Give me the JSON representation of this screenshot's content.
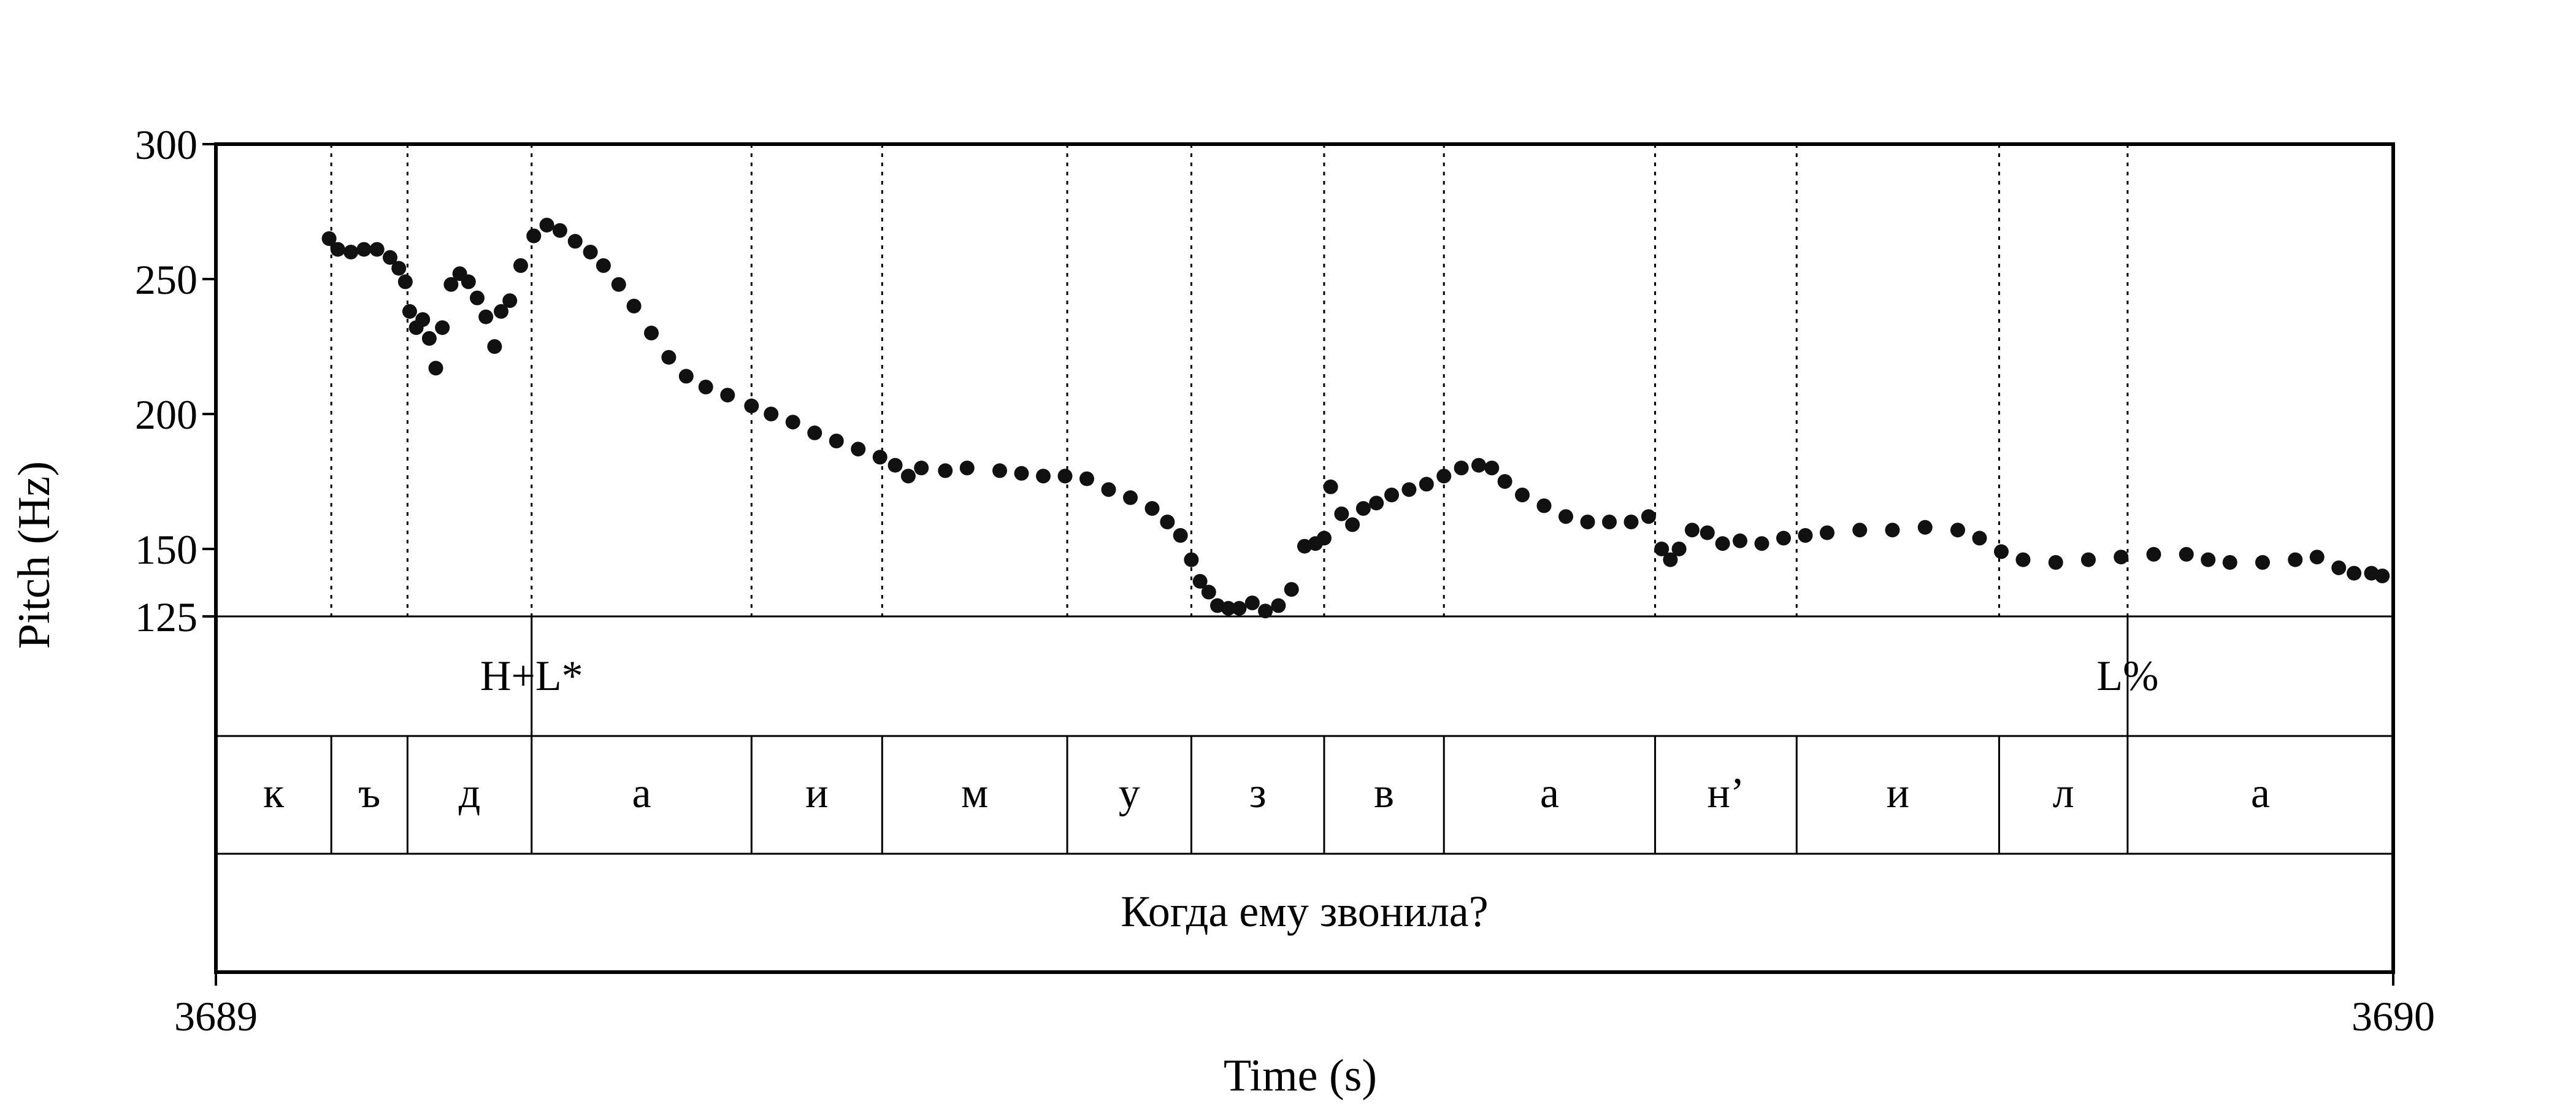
{
  "chart_data": {
    "type": "scatter",
    "xlabel": "Time (s)",
    "ylabel": "Pitch (Hz)",
    "xlim": [
      3689,
      3690
    ],
    "ylim": [
      125,
      300
    ],
    "x_ticks": [
      "3689",
      "3690"
    ],
    "y_ticks": [
      {
        "value": 300,
        "label": "300"
      },
      {
        "value": 250,
        "label": "250"
      },
      {
        "value": 200,
        "label": "200"
      },
      {
        "value": 150,
        "label": "150"
      },
      {
        "value": 125,
        "label": "125"
      }
    ],
    "grid": false,
    "tiers": {
      "tones": [
        {
          "label": "H+L*",
          "t": 0.145
        },
        {
          "label": "L%",
          "t": 0.878
        }
      ],
      "segments": {
        "labels": [
          "к",
          "ъ",
          "д",
          "а",
          "и",
          "м",
          "у",
          "з",
          "в",
          "а",
          "н’",
          "и",
          "л",
          "а"
        ],
        "boundaries": [
          0,
          0.053,
          0.088,
          0.145,
          0.246,
          0.306,
          0.391,
          0.448,
          0.509,
          0.564,
          0.661,
          0.726,
          0.819,
          0.878,
          1.0
        ]
      },
      "sentence": "Когда ему звонила?"
    },
    "series": [
      {
        "points": [
          [
            0.052,
            265
          ],
          [
            0.056,
            261
          ],
          [
            0.062,
            260
          ],
          [
            0.068,
            261
          ],
          [
            0.074,
            261
          ],
          [
            0.08,
            258
          ],
          [
            0.084,
            254
          ],
          [
            0.087,
            249
          ],
          [
            0.089,
            238
          ],
          [
            0.092,
            232
          ],
          [
            0.095,
            235
          ],
          [
            0.098,
            228
          ],
          [
            0.101,
            217
          ],
          [
            0.104,
            232
          ],
          [
            0.108,
            248
          ],
          [
            0.112,
            252
          ],
          [
            0.116,
            249
          ],
          [
            0.12,
            243
          ],
          [
            0.124,
            236
          ],
          [
            0.128,
            225
          ],
          [
            0.131,
            238
          ],
          [
            0.135,
            242
          ],
          [
            0.14,
            255
          ],
          [
            0.146,
            266
          ],
          [
            0.152,
            270
          ],
          [
            0.158,
            268
          ],
          [
            0.165,
            264
          ],
          [
            0.172,
            260
          ],
          [
            0.178,
            255
          ],
          [
            0.185,
            248
          ],
          [
            0.192,
            240
          ],
          [
            0.2,
            230
          ],
          [
            0.208,
            221
          ],
          [
            0.216,
            214
          ],
          [
            0.225,
            210
          ],
          [
            0.235,
            207
          ],
          [
            0.246,
            203
          ],
          [
            0.255,
            200
          ],
          [
            0.265,
            197
          ],
          [
            0.275,
            193
          ],
          [
            0.285,
            190
          ],
          [
            0.295,
            187
          ],
          [
            0.305,
            184
          ],
          [
            0.312,
            181
          ],
          [
            0.318,
            177
          ],
          [
            0.324,
            180
          ],
          [
            0.335,
            179
          ],
          [
            0.345,
            180
          ],
          [
            0.36,
            179
          ],
          [
            0.37,
            178
          ],
          [
            0.38,
            177
          ],
          [
            0.39,
            177
          ],
          [
            0.4,
            176
          ],
          [
            0.41,
            172
          ],
          [
            0.42,
            169
          ],
          [
            0.43,
            165
          ],
          [
            0.437,
            160
          ],
          [
            0.443,
            155
          ],
          [
            0.448,
            146
          ],
          [
            0.452,
            138
          ],
          [
            0.456,
            134
          ],
          [
            0.46,
            129
          ],
          [
            0.465,
            128
          ],
          [
            0.47,
            128
          ],
          [
            0.476,
            130
          ],
          [
            0.482,
            127
          ],
          [
            0.488,
            129
          ],
          [
            0.494,
            135
          ],
          [
            0.5,
            151
          ],
          [
            0.505,
            152
          ],
          [
            0.509,
            154
          ],
          [
            0.512,
            173
          ],
          [
            0.517,
            163
          ],
          [
            0.522,
            159
          ],
          [
            0.527,
            165
          ],
          [
            0.533,
            167
          ],
          [
            0.54,
            170
          ],
          [
            0.548,
            172
          ],
          [
            0.556,
            174
          ],
          [
            0.564,
            177
          ],
          [
            0.572,
            180
          ],
          [
            0.58,
            181
          ],
          [
            0.586,
            180
          ],
          [
            0.592,
            175
          ],
          [
            0.6,
            170
          ],
          [
            0.61,
            166
          ],
          [
            0.62,
            162
          ],
          [
            0.63,
            160
          ],
          [
            0.64,
            160
          ],
          [
            0.65,
            160
          ],
          [
            0.658,
            162
          ],
          [
            0.664,
            150
          ],
          [
            0.668,
            146
          ],
          [
            0.672,
            150
          ],
          [
            0.678,
            157
          ],
          [
            0.685,
            156
          ],
          [
            0.692,
            152
          ],
          [
            0.7,
            153
          ],
          [
            0.71,
            152
          ],
          [
            0.72,
            154
          ],
          [
            0.73,
            155
          ],
          [
            0.74,
            156
          ],
          [
            0.755,
            157
          ],
          [
            0.77,
            157
          ],
          [
            0.785,
            158
          ],
          [
            0.8,
            157
          ],
          [
            0.81,
            154
          ],
          [
            0.82,
            149
          ],
          [
            0.83,
            146
          ],
          [
            0.845,
            145
          ],
          [
            0.86,
            146
          ],
          [
            0.875,
            147
          ],
          [
            0.89,
            148
          ],
          [
            0.905,
            148
          ],
          [
            0.915,
            146
          ],
          [
            0.925,
            145
          ],
          [
            0.94,
            145
          ],
          [
            0.955,
            146
          ],
          [
            0.965,
            147
          ],
          [
            0.975,
            143
          ],
          [
            0.982,
            141
          ],
          [
            0.99,
            141
          ],
          [
            0.995,
            140
          ]
        ]
      }
    ]
  }
}
